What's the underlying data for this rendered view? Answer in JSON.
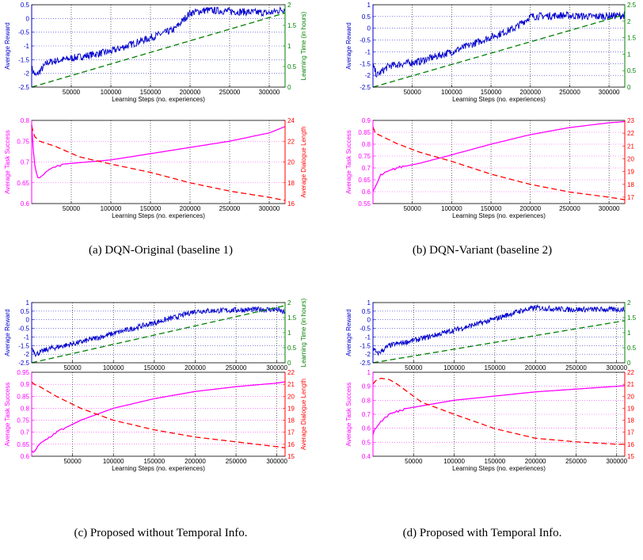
{
  "panels": [
    {
      "id": "a",
      "caption": "(a)  DQN-Original (baseline 1)",
      "top": {
        "xlabel": "Learning Steps (no. experiences)",
        "ylabel_left": "Average Reward",
        "ylabel_right": "Learning Time (in hours)",
        "xlim": [
          0,
          320000
        ],
        "xticks": [
          "50000",
          "100000",
          "150000",
          "200000",
          "250000",
          "300000"
        ],
        "ylim_left": [
          -2.5,
          0.5
        ],
        "yticks_left": [
          "-2.5",
          "-2",
          "-1.5",
          "-1",
          "-0.5",
          "0",
          "0.5"
        ],
        "ylim_right": [
          0,
          2
        ],
        "yticks_right": [
          "0",
          "0.5",
          "1",
          "1.5",
          "2"
        ],
        "series": [
          {
            "color": "#0000cc",
            "style": "solid-noisy",
            "axis": "left",
            "x": [
              0,
              5000,
              20000,
              60000,
              100000,
              140000,
              180000,
              200000,
              220000,
              260000,
              300000,
              320000
            ],
            "y": [
              -1.8,
              -2.1,
              -1.6,
              -1.4,
              -1.2,
              -0.8,
              -0.4,
              0.2,
              0.3,
              0.25,
              0.2,
              0.35
            ]
          },
          {
            "color": "#008000",
            "style": "dashed",
            "axis": "right",
            "x": [
              0,
              320000
            ],
            "y": [
              0,
              1.8
            ]
          }
        ]
      },
      "bottom": {
        "xlabel": "Learning Steps (no. experiences)",
        "ylabel_left": "Average Task Success",
        "ylabel_right": "Average Dialogue Length",
        "xlim": [
          0,
          320000
        ],
        "xticks": [
          "50000",
          "100000",
          "150000",
          "200000",
          "250000",
          "300000"
        ],
        "ylim_left": [
          0.6,
          0.8
        ],
        "yticks_left": [
          "0.6",
          "0.65",
          "0.7",
          "0.75",
          "0.8"
        ],
        "ylim_right": [
          16,
          24
        ],
        "yticks_right": [
          "16",
          "18",
          "20",
          "22",
          "24"
        ],
        "series": [
          {
            "color": "#ff00ff",
            "style": "solid",
            "axis": "left",
            "x": [
              0,
              3000,
              8000,
              20000,
              40000,
              70000,
              100000,
              150000,
              200000,
              250000,
              300000,
              320000
            ],
            "y": [
              0.79,
              0.7,
              0.66,
              0.68,
              0.695,
              0.7,
              0.705,
              0.72,
              0.735,
              0.75,
              0.77,
              0.785
            ]
          },
          {
            "color": "#ff0000",
            "style": "dashed",
            "axis": "right",
            "x": [
              0,
              3000,
              10000,
              30000,
              60000,
              100000,
              150000,
              200000,
              250000,
              300000,
              320000
            ],
            "y": [
              23.5,
              22.5,
              22.0,
              21.5,
              20.5,
              19.8,
              19.0,
              18.0,
              17.2,
              16.6,
              16.3
            ]
          }
        ]
      }
    },
    {
      "id": "b",
      "caption": "(b)  DQN-Variant (baseline 2)",
      "top": {
        "xlabel": "Learning Steps (no. experiences)",
        "ylabel_left": "Average Reward",
        "ylabel_right": "",
        "xlim": [
          0,
          320000
        ],
        "xticks": [
          "50000",
          "100000",
          "150000",
          "200000",
          "250000",
          "300000"
        ],
        "ylim_left": [
          -2.5,
          1
        ],
        "yticks_left": [
          "-2.5",
          "-2",
          "-1.5",
          "-1",
          "-0.5",
          "0",
          "0.5",
          "1"
        ],
        "ylim_right": [
          0,
          2.5
        ],
        "yticks_right": [
          "0",
          "0.5",
          "1",
          "1.5",
          "2",
          "2.5"
        ],
        "series": [
          {
            "color": "#0000cc",
            "style": "solid-noisy",
            "axis": "left",
            "x": [
              0,
              5000,
              20000,
              60000,
              100000,
              140000,
              180000,
              200000,
              240000,
              280000,
              320000
            ],
            "y": [
              -1.6,
              -2.0,
              -1.6,
              -1.4,
              -1.0,
              -0.5,
              0.0,
              0.5,
              0.55,
              0.5,
              0.55
            ]
          },
          {
            "color": "#008000",
            "style": "dashed",
            "axis": "right",
            "x": [
              0,
              320000
            ],
            "y": [
              0,
              2.2
            ]
          }
        ]
      },
      "bottom": {
        "xlabel": "Learning Steps (no. experiences)",
        "ylabel_left": "Average Task Success",
        "ylabel_right": "",
        "xlim": [
          0,
          320000
        ],
        "xticks": [
          "50000",
          "100000",
          "150000",
          "200000",
          "250000",
          "300000"
        ],
        "ylim_left": [
          0.55,
          0.9
        ],
        "yticks_left": [
          "0.55",
          "0.6",
          "0.65",
          "0.7",
          "0.75",
          "0.8",
          "0.85",
          "0.9"
        ],
        "ylim_right": [
          16.5,
          23
        ],
        "yticks_right": [
          "17",
          "18",
          "19",
          "20",
          "21",
          "22",
          "23"
        ],
        "series": [
          {
            "color": "#ff00ff",
            "style": "solid",
            "axis": "left",
            "x": [
              0,
              3000,
              10000,
              30000,
              60000,
              100000,
              150000,
              200000,
              250000,
              300000,
              320000
            ],
            "y": [
              0.6,
              0.62,
              0.67,
              0.7,
              0.72,
              0.755,
              0.8,
              0.84,
              0.87,
              0.89,
              0.895
            ]
          },
          {
            "color": "#ff0000",
            "style": "dashed",
            "axis": "right",
            "x": [
              0,
              3000,
              10000,
              30000,
              60000,
              100000,
              150000,
              200000,
              250000,
              300000,
              320000
            ],
            "y": [
              22.5,
              22.0,
              21.8,
              21.2,
              20.5,
              19.8,
              18.8,
              18.0,
              17.4,
              17.0,
              16.8
            ]
          }
        ]
      }
    },
    {
      "id": "c",
      "caption": "(c)  Proposed without Temporal Info.",
      "top": {
        "xlabel": "Learning Steps (no. experiences)",
        "ylabel_left": "Average Reward",
        "ylabel_right": "Learning Time (in hours)",
        "xlim": [
          0,
          310000
        ],
        "xticks": [
          "50000",
          "100000",
          "150000",
          "200000",
          "250000",
          "300000"
        ],
        "ylim_left": [
          -2.5,
          1
        ],
        "yticks_left": [
          "-2.5",
          "-2",
          "-1.5",
          "-1",
          "-0.5",
          "0",
          "0.5",
          "1"
        ],
        "ylim_right": [
          0,
          2
        ],
        "yticks_right": [
          "0",
          "0.5",
          "1",
          "1.5",
          "2"
        ],
        "series": [
          {
            "color": "#0000cc",
            "style": "solid-noisy",
            "axis": "left",
            "x": [
              0,
              5000,
              20000,
              60000,
              100000,
              140000,
              180000,
              200000,
              240000,
              280000,
              300000,
              310000
            ],
            "y": [
              -1.6,
              -2.0,
              -1.7,
              -1.3,
              -0.8,
              -0.3,
              0.2,
              0.5,
              0.55,
              0.6,
              0.6,
              0.4
            ]
          },
          {
            "color": "#008000",
            "style": "dashed",
            "axis": "right",
            "x": [
              0,
              310000
            ],
            "y": [
              0,
              1.9
            ]
          }
        ]
      },
      "bottom": {
        "xlabel": "Learning Steps (no. experiences)",
        "ylabel_left": "Average Task Success",
        "ylabel_right": "Average Dialogue Length",
        "xlim": [
          0,
          310000
        ],
        "xticks": [
          "50000",
          "100000",
          "150000",
          "200000",
          "250000",
          "300000"
        ],
        "ylim_left": [
          0.6,
          0.95
        ],
        "yticks_left": [
          "0.6",
          "0.65",
          "0.7",
          "0.75",
          "0.8",
          "0.85",
          "0.9",
          "0.95"
        ],
        "ylim_right": [
          15,
          22
        ],
        "yticks_right": [
          "15",
          "16",
          "17",
          "18",
          "19",
          "20",
          "21",
          "22"
        ],
        "series": [
          {
            "color": "#ff00ff",
            "style": "solid",
            "axis": "left",
            "x": [
              0,
              3000,
              10000,
              30000,
              60000,
              100000,
              150000,
              200000,
              250000,
              300000,
              310000
            ],
            "y": [
              0.62,
              0.62,
              0.65,
              0.7,
              0.75,
              0.8,
              0.84,
              0.87,
              0.89,
              0.905,
              0.91
            ]
          },
          {
            "color": "#ff0000",
            "style": "dashed",
            "axis": "right",
            "x": [
              0,
              3000,
              10000,
              30000,
              60000,
              100000,
              150000,
              200000,
              250000,
              300000,
              310000
            ],
            "y": [
              21.2,
              21.0,
              20.8,
              20.0,
              19.0,
              18.0,
              17.2,
              16.6,
              16.2,
              15.8,
              15.7
            ]
          }
        ]
      }
    },
    {
      "id": "d",
      "caption": "(d)  Proposed with Temporal Info.",
      "top": {
        "xlabel": "Learning Steps (no. experiences)",
        "ylabel_left": "Average Reward",
        "ylabel_right": "",
        "xlim": [
          0,
          310000
        ],
        "xticks": [
          "50000",
          "100000",
          "150000",
          "200000",
          "250000",
          "300000"
        ],
        "ylim_left": [
          -2.5,
          1
        ],
        "yticks_left": [
          "-2.5",
          "-2",
          "-1.5",
          "-1",
          "-0.5",
          "0",
          "0.5",
          "1"
        ],
        "ylim_right": [
          0,
          2
        ],
        "yticks_right": [
          "0",
          "0.5",
          "1",
          "1.5",
          "2"
        ],
        "series": [
          {
            "color": "#0000cc",
            "style": "solid-noisy",
            "axis": "left",
            "x": [
              0,
              5000,
              20000,
              60000,
              100000,
              140000,
              180000,
              200000,
              240000,
              280000,
              310000
            ],
            "y": [
              -1.6,
              -2.0,
              -1.5,
              -1.1,
              -0.6,
              -0.1,
              0.5,
              0.7,
              0.6,
              0.6,
              0.6
            ]
          },
          {
            "color": "#008000",
            "style": "dashed",
            "axis": "right",
            "x": [
              0,
              310000
            ],
            "y": [
              0,
              1.4
            ]
          }
        ]
      },
      "bottom": {
        "xlabel": "Learning Steps (no. experiences)",
        "ylabel_left": "Average Task Success",
        "ylabel_right": "",
        "xlim": [
          0,
          310000
        ],
        "xticks": [
          "50000",
          "100000",
          "150000",
          "200000",
          "250000",
          "300000"
        ],
        "ylim_left": [
          0.4,
          1
        ],
        "yticks_left": [
          "0.4",
          "0.5",
          "0.6",
          "0.7",
          "0.8",
          "0.9",
          "1"
        ],
        "ylim_right": [
          15,
          22
        ],
        "yticks_right": [
          "15",
          "16",
          "17",
          "18",
          "19",
          "20",
          "21",
          "22"
        ],
        "series": [
          {
            "color": "#ff00ff",
            "style": "solid",
            "axis": "left",
            "x": [
              0,
              3000,
              10000,
              20000,
              40000,
              70000,
              100000,
              150000,
              200000,
              250000,
              300000,
              310000
            ],
            "y": [
              0.55,
              0.6,
              0.65,
              0.7,
              0.74,
              0.77,
              0.8,
              0.83,
              0.86,
              0.88,
              0.9,
              0.905
            ]
          },
          {
            "color": "#ff0000",
            "style": "dashed",
            "axis": "right",
            "x": [
              0,
              3000,
              10000,
              20000,
              30000,
              60000,
              100000,
              150000,
              200000,
              250000,
              300000,
              310000
            ],
            "y": [
              21.0,
              21.3,
              21.5,
              21.4,
              21.0,
              19.5,
              18.5,
              17.3,
              16.5,
              16.2,
              16.0,
              16.0
            ]
          }
        ]
      }
    }
  ]
}
